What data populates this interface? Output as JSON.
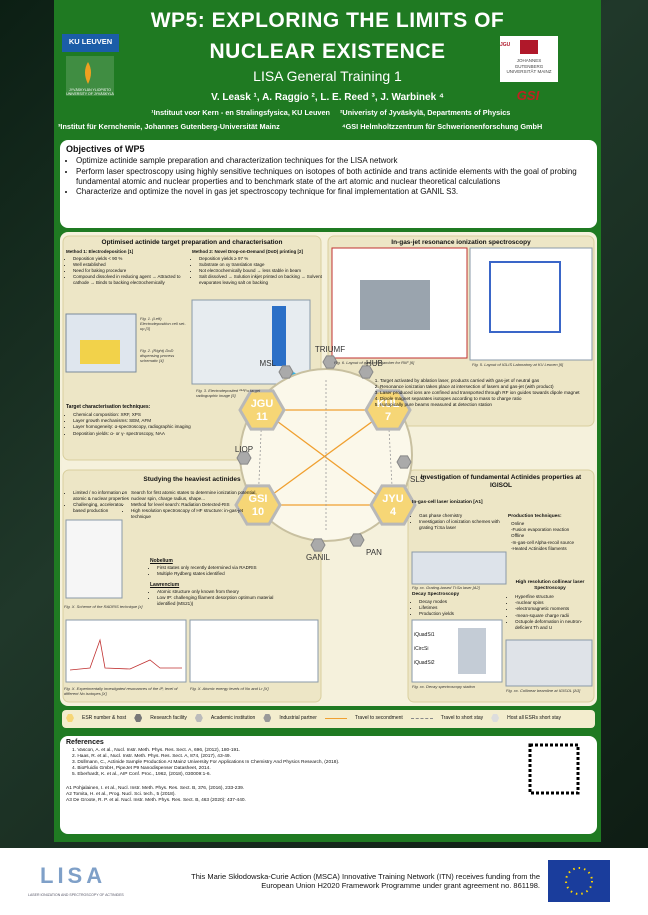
{
  "header": {
    "title_line1": "WP5: EXPLORING THE LIMITS OF",
    "title_line2": "NUCLEAR EXISTENCE",
    "subtitle": "LISA General Training 1",
    "authors": "V. Leask ¹, A. Raggio ², L. E. Reed ³, J. Warbinek ⁴",
    "affiliations": [
      "¹Instituut voor Kern - en Stralingsfysica, KU Leuven",
      "²Univeristy of Jyväskylä, Departments of Physics",
      "³Institut für Kernchemie, Johannes Gutenberg-Universität Mainz",
      "⁴GSI Helmholtzzentrum für Schwerionenforschung GmbH"
    ],
    "logos": {
      "ku_leuven": "KU LEUVEN",
      "jyu": "JYVÄSKYLÄN YLIOPISTO UNIVERSITY OF JYVÄSKYLÄ",
      "jgu": "JGU",
      "jgu_name": "JOHANNES GUTENBERG UNIVERSITÄT MAINZ",
      "gsi": "GSI"
    }
  },
  "objectives": {
    "title": "Objectives of WP5",
    "items": [
      "Optimize actinide sample preparation and characterization techniques for the LISA network",
      "Perform laser spectroscopy using highly sensitive techniques on isotopes of both actinide and trans actinide elements with the goal of probing fundamental atomic and nuclear properties and to benchmark state of the art atomic and nuclear theoretical calculations",
      "Characterize and optimize the novel in gas jet spectroscopy technique for final implementation at GANIL S3."
    ]
  },
  "target_prep": {
    "title": "Optimised actinide target preparation and characterisation",
    "method1": {
      "title": "Method 1: Electrodeposition [1]",
      "items": [
        "Deposition yields < 90 %",
        "Well established",
        "Need for baking procedure",
        "Compound dissolved in reducing agent → Attracted to cathode → Binds to backing electrochemically"
      ]
    },
    "method2": {
      "title": "Method 2: Novel Drop-on-Demand (DoD) printing [2]",
      "items": [
        "Deposition yields ≥ 97 %",
        "Substrate on xy translation stage",
        "Not electrochemically bound → less stable in beam",
        "Salt dissolved → Solution inkjet printed on backing → Solvent evaporates leaving salt on backing"
      ]
    },
    "techniques": {
      "title": "Target characterisation techniques:",
      "items": [
        "Chemical composition: XRF, XPS",
        "Layer growth mechanisms: SEM, AFM",
        "Layer homogeneity: α-spectroscopy, radiographic imaging",
        "Deposition yields: α- or γ- spectroscopy, NAA"
      ]
    },
    "captions": [
      "Fig. 1. (Left) Electrodeposition cell set-up [3]",
      "Fig. 2. (Right) DoD dispensing process schematic [4]",
      "Fig. 3. Electrodeposited ²⁴⁴Pu target radiographic image [5]"
    ]
  },
  "gas_jet": {
    "title": "In-gas-jet resonance ionization spectroscopy",
    "items": [
      "Target activated by ablation laser, products carried with gas-jet of neutral gas",
      "Resonance ionization takes place at intersection of lasers and gas-jet (with product)",
      "Laser produced ions are confined and transported through RF ion guides towards dipole magnet",
      "Dipole magnet separates isotopes according to mass to charge ratio",
      "Isotopically pure beams measured at detection station"
    ],
    "captions": [
      "Fig. 6. Layout of gas-cell chamber for RIIF [6]",
      "Fig. 5. Layout of IGLIS Laboratory at KU Leuven [6]"
    ]
  },
  "heaviest": {
    "title": "Studying the heaviest actinides",
    "left_items": [
      "Limited / no information on atomic & nuclear properties",
      "Challenging, accelerator-based production"
    ],
    "right_items": [
      "Search for first atomic states to determine ionization potential, nuclear spin, charge radius, shape...",
      "Method for level search: Radiation Detected-RIS",
      "High resolution spectroscopy of HF structure: in-gas-jet technique"
    ],
    "nobelium": {
      "title": "Nobelium",
      "items": [
        "First states only recently determined via RADRIS",
        "Multiple Rydberg states identified"
      ]
    },
    "lawrencium": {
      "title": "Lawrencium",
      "items": [
        "Atomic structure only known from theory",
        "Low IP: challenging filament desorption optimum material identified (MS21))"
      ]
    },
    "captions": [
      "Fig. X. Scheme of the RADRIS technique [x]",
      "Fig. X. Experimentally investigated resonances of the IP, level of different No isotopes [X]",
      "Fig. X. Atomic energy levels of No and Lr [X]"
    ]
  },
  "fundamental": {
    "title": "Investigation of fundamental Actinides properties at IGISOL",
    "gas_cell": {
      "title": "In-gas-cell laser ionization [A1]",
      "items": [
        "Gas phase chemistry",
        "Investigation of ionization schemes with grating Ti:Sa laser"
      ]
    },
    "production": {
      "title": "Production techniques:",
      "items": [
        "Online",
        "-Fusion evaporation reaction",
        "Offline",
        "-In-gas-cell Alpha-recoil source",
        "-Heated Actinides filaments"
      ]
    },
    "decay": {
      "title": "Decay Spectroscopy",
      "items": [
        "Decay modes",
        "Lifetimes",
        "Production yields"
      ]
    },
    "collinear": {
      "title": "High resolution collinear laser Spectroscopy",
      "items": [
        "Hyperfine structure",
        "-nuclear spins",
        "-electromagnetic moments",
        "-mean-square charge radii",
        "Octupole deformation in neutron-deficient Th and U"
      ]
    },
    "detectors": [
      "iQuadSi1",
      "iCircSi",
      "iQuadSi2"
    ],
    "captions": [
      "Fig. xx. Grating-based Ti:Sa laser [A2]",
      "Fig. xx. Decay spectroscopy station",
      "Fig. xx. Collinear beamline at IGISOL [A3]"
    ]
  },
  "network": {
    "hubs": [
      {
        "label": "JGU",
        "number": "11"
      },
      {
        "label": "KUL",
        "number": "7"
      },
      {
        "label": "GSI",
        "number": "10"
      },
      {
        "label": "JYU",
        "number": "4"
      }
    ],
    "partners": [
      "MSL",
      "TRIUMF",
      "HUB",
      "LIOP",
      "SLS",
      "GANIL",
      "PAN"
    ]
  },
  "legend": [
    "ESR number & host",
    "Research facility",
    "Academic institution",
    "Industrial partner",
    "Travel to secondment",
    "Travel to short stay",
    "Host all ESRs short stay"
  ],
  "references": {
    "title": "References",
    "items": [
      "1.  Vascon, A. et al., Nucl. Instr. Meth. Phys. Res. Sect. A, 696, (2012), 180-191.",
      "2.  Haas, R. et al., Nucl. Instr. Meth. Phys. Res. Sect. A, 874, (2017), 43-49.",
      "3.  Düllmann, C., Actinide Sample Production At Mainz University For Applications In Chemistry And Physics Research, (2018).",
      "4.  BioFluidix GmbH, PipeJet P9 Nanodispenser Datasheet, 2014.",
      "5.  Eberhardt, K. et al., AIP Conf. Proc., 1962, (2018), 030009:1-6."
    ],
    "items_a": [
      "A1 Pohjalainen, I. et al., Nucl. Instr. Meth. Phys. Res. Sect. B, 376, (2016), 233-239.",
      "A2 Tomita, H. et al., Prog. Nucl. Sci. tech., 5 (2018).",
      "A3 De Groote, R. P. et al. Nucl. Instr. Meth. Phys. Res. Sect. B, 463 (2020): 437-440."
    ]
  },
  "footer": {
    "lisa": "LISA",
    "lisa_sub": "LASER IONIZATION AND SPECTROSCOPY OF ACTINIDES",
    "text": "This Marie Skłodowska-Curie Action (MSCA) Innovative Training Network (ITN) receives funding from the European Union H2020 Framework Programme under grant agreement no. 861198."
  }
}
